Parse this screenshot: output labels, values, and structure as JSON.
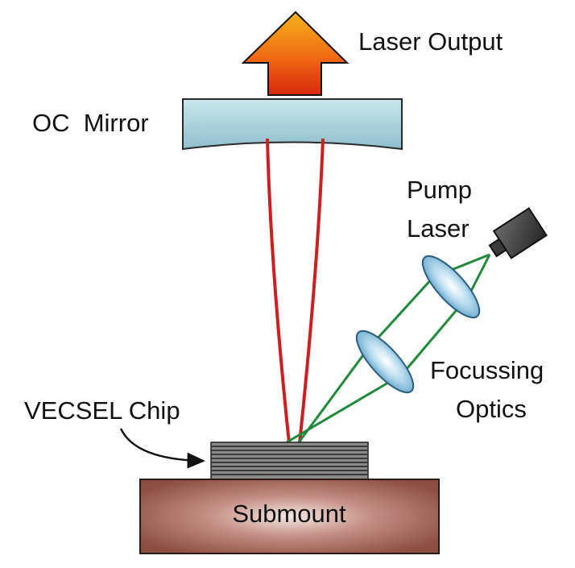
{
  "labels": {
    "laser_output": "Laser Output",
    "oc_mirror": "OC  Mirror",
    "pump_laser_line1": "Pump",
    "pump_laser_line2": "Laser",
    "focussing_optics_line1": "Focussing",
    "focussing_optics_line2": "Optics",
    "vecsel_chip": "VECSEL Chip",
    "submount": "Submount"
  },
  "colors": {
    "laser_beam": "#cc1f1f",
    "pump_beam": "#1e8a3a",
    "mirror": "#a9d3dc",
    "submount": "#9a5a4e",
    "chip": "#555555",
    "output_arrow_top": "#f7a21b",
    "output_arrow_bottom": "#e23a0c"
  }
}
